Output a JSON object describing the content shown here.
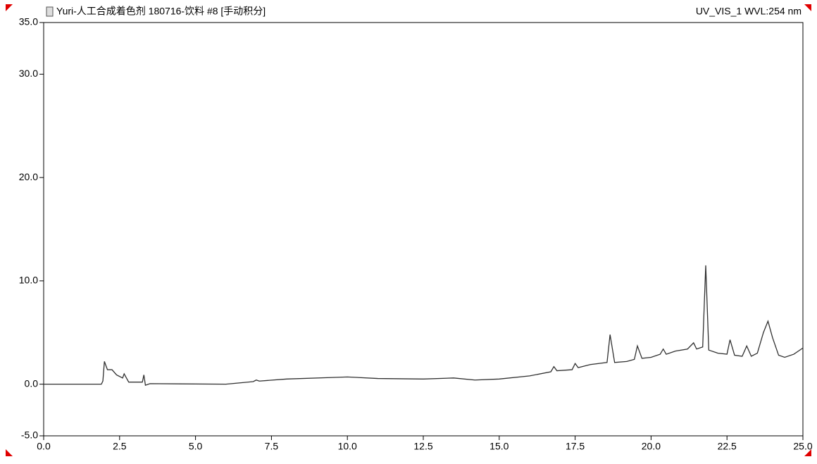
{
  "chart_data": {
    "type": "line",
    "title": "Yuri-人工合成着色剂 180716-饮料 #8 [手动积分]",
    "subtitle": "UV_VIS_1 WVL:254 nm",
    "xlim": [
      0,
      25
    ],
    "ylim": [
      -5,
      35
    ],
    "xticks": [
      {
        "value": 0,
        "label": "0.0"
      },
      {
        "value": 2.5,
        "label": "2.5"
      },
      {
        "value": 5,
        "label": "5.0"
      },
      {
        "value": 7.5,
        "label": "7.5"
      },
      {
        "value": 10,
        "label": "10.0"
      },
      {
        "value": 12.5,
        "label": "12.5"
      },
      {
        "value": 15,
        "label": "15.0"
      },
      {
        "value": 17.5,
        "label": "17.5"
      },
      {
        "value": 20,
        "label": "20.0"
      },
      {
        "value": 22.5,
        "label": "22.5"
      },
      {
        "value": 25,
        "label": "25.0"
      }
    ],
    "yticks": [
      {
        "value": -5,
        "label": "-5.0"
      },
      {
        "value": 0,
        "label": "0.0"
      },
      {
        "value": 10,
        "label": "10.0"
      },
      {
        "value": 20,
        "label": "20.0"
      },
      {
        "value": 30,
        "label": "30.0"
      },
      {
        "value": 35,
        "label": "35.0"
      }
    ],
    "series": [
      {
        "color": "#303030",
        "x": [
          0,
          1.9,
          1.95,
          2.0,
          2.1,
          2.25,
          2.4,
          2.6,
          2.65,
          2.8,
          3.25,
          3.3,
          3.35,
          3.5,
          6.0,
          6.9,
          7.0,
          7.1,
          8.0,
          9.5,
          10.0,
          11.0,
          12.5,
          13.5,
          14.2,
          15.0,
          16.0,
          16.7,
          16.8,
          16.9,
          17.4,
          17.5,
          17.6,
          18.0,
          18.55,
          18.65,
          18.8,
          19.2,
          19.45,
          19.55,
          19.7,
          20.0,
          20.3,
          20.4,
          20.5,
          20.8,
          21.2,
          21.4,
          21.5,
          21.7,
          21.8,
          21.9,
          22.2,
          22.5,
          22.6,
          22.75,
          23.0,
          23.15,
          23.3,
          23.5,
          23.7,
          23.85,
          24.0,
          24.2,
          24.4,
          24.7,
          25.0
        ],
        "values": [
          0,
          0,
          0.3,
          2.2,
          1.4,
          1.4,
          0.9,
          0.6,
          1.0,
          0.2,
          0.2,
          0.9,
          -0.1,
          0.05,
          0.0,
          0.25,
          0.4,
          0.3,
          0.5,
          0.65,
          0.7,
          0.55,
          0.5,
          0.6,
          0.4,
          0.5,
          0.8,
          1.2,
          1.7,
          1.3,
          1.4,
          2.0,
          1.6,
          1.9,
          2.1,
          4.8,
          2.1,
          2.2,
          2.4,
          3.7,
          2.5,
          2.6,
          2.9,
          3.4,
          2.9,
          3.2,
          3.4,
          4.0,
          3.4,
          3.6,
          11.5,
          3.3,
          3.0,
          2.9,
          4.3,
          2.8,
          2.7,
          3.7,
          2.7,
          3.0,
          5.0,
          6.1,
          4.5,
          2.8,
          2.6,
          2.9,
          3.5
        ]
      }
    ]
  }
}
